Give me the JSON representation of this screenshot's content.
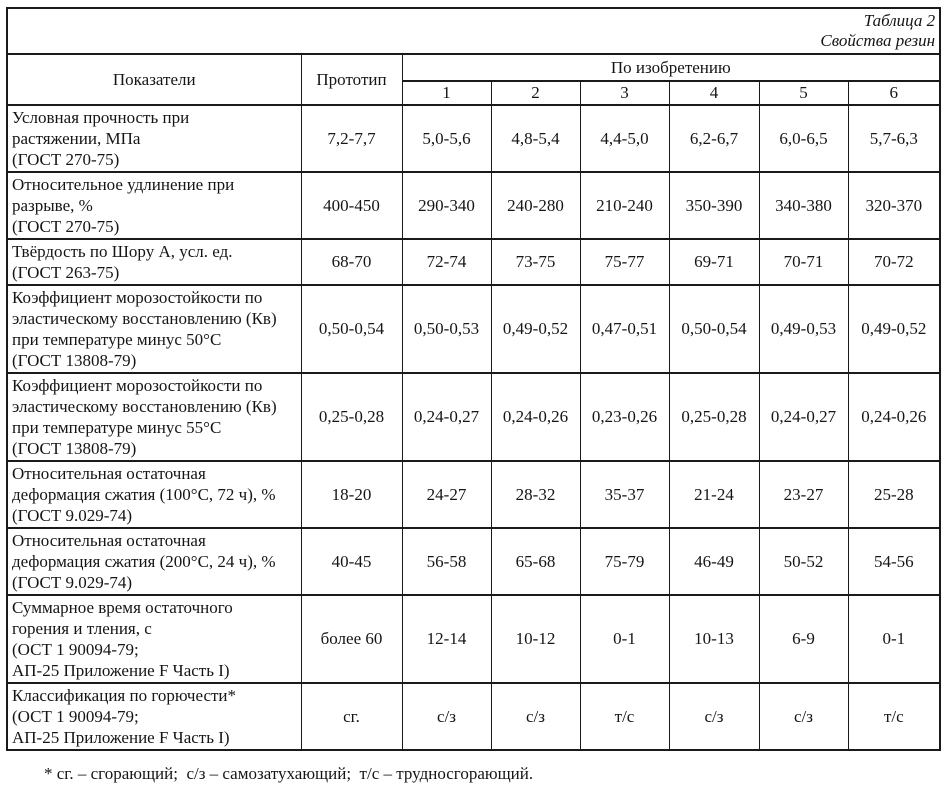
{
  "title": {
    "table_number": "Таблица 2",
    "subtitle": "Свойства резин"
  },
  "header": {
    "indicators": "Показатели",
    "prototype": "Прототип",
    "invention_group": "По изобретению",
    "invention_columns": [
      "1",
      "2",
      "3",
      "4",
      "5",
      "6"
    ]
  },
  "rows": [
    {
      "label_lines": [
        "Условная прочность при",
        "растяжении, МПа",
        "(ГОСТ 270-75)"
      ],
      "prototype": "7,2-7,7",
      "values": [
        "5,0-5,6",
        "4,8-5,4",
        "4,4-5,0",
        "6,2-6,7",
        "6,0-6,5",
        "5,7-6,3"
      ]
    },
    {
      "label_lines": [
        "Относительное удлинение при",
        "разрыве, %",
        "(ГОСТ 270-75)"
      ],
      "prototype": "400-450",
      "values": [
        "290-340",
        "240-280",
        "210-240",
        "350-390",
        "340-380",
        "320-370"
      ]
    },
    {
      "label_lines": [
        "Твёрдость по Шору А, усл. ед.",
        "(ГОСТ 263-75)"
      ],
      "prototype": "68-70",
      "values": [
        "72-74",
        "73-75",
        "75-77",
        "69-71",
        "70-71",
        "70-72"
      ]
    },
    {
      "label_lines": [
        "Коэффициент морозостойкости по",
        "эластическому восстановлению (Кв)",
        "при температуре минус 50°С",
        "(ГОСТ 13808-79)"
      ],
      "prototype": "0,50-0,54",
      "values": [
        "0,50-0,53",
        "0,49-0,52",
        "0,47-0,51",
        "0,50-0,54",
        "0,49-0,53",
        "0,49-0,52"
      ]
    },
    {
      "label_lines": [
        "Коэффициент морозостойкости по",
        "эластическому восстановлению (Кв)",
        "при температуре минус 55°С",
        "(ГОСТ 13808-79)"
      ],
      "prototype": "0,25-0,28",
      "values": [
        "0,24-0,27",
        "0,24-0,26",
        "0,23-0,26",
        "0,25-0,28",
        "0,24-0,27",
        "0,24-0,26"
      ]
    },
    {
      "label_lines": [
        "Относительная остаточная",
        "деформация сжатия (100°С, 72 ч), %",
        "(ГОСТ 9.029-74)"
      ],
      "prototype": "18-20",
      "values": [
        "24-27",
        "28-32",
        "35-37",
        "21-24",
        "23-27",
        "25-28"
      ]
    },
    {
      "label_lines": [
        "Относительная остаточная",
        "деформация сжатия (200°С, 24 ч), %",
        "(ГОСТ 9.029-74)"
      ],
      "prototype": "40-45",
      "values": [
        "56-58",
        "65-68",
        "75-79",
        "46-49",
        "50-52",
        "54-56"
      ]
    },
    {
      "label_lines": [
        "Суммарное время остаточного",
        "горения и тления, с",
        "(ОСТ 1 90094-79;",
        "АП-25 Приложение F Часть I)"
      ],
      "prototype": "более 60",
      "values": [
        "12-14",
        "10-12",
        "0-1",
        "10-13",
        "6-9",
        "0-1"
      ]
    },
    {
      "label_lines": [
        "Классификация по горючести*",
        "(ОСТ 1 90094-79;",
        "АП-25 Приложение F Часть I)"
      ],
      "prototype": "сг.",
      "values": [
        "с/з",
        "с/з",
        "т/с",
        "с/з",
        "с/з",
        "т/с"
      ]
    }
  ],
  "footnote": "* сг. – сгорающий;  с/з – самозатухающий;  т/с – трудносгорающий."
}
